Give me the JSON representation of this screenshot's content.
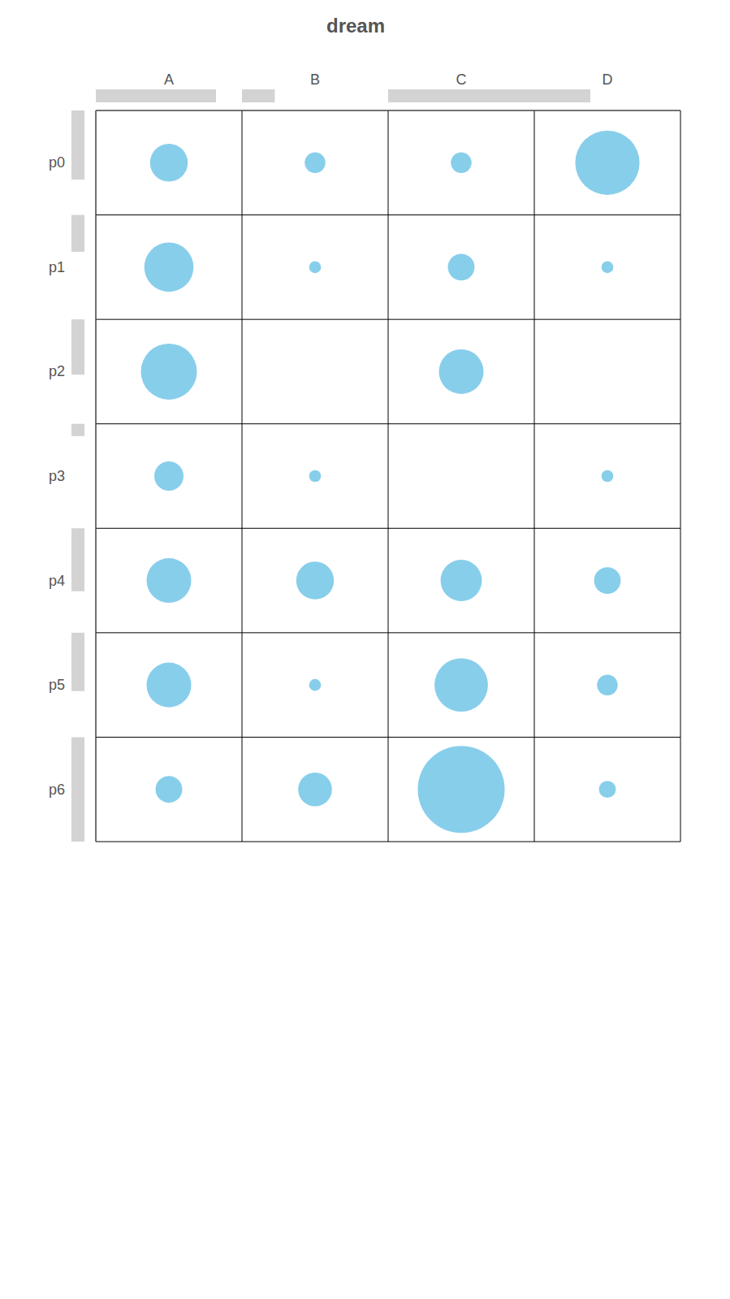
{
  "chart_data": {
    "type": "balloon",
    "title": "dream",
    "columns": [
      "A",
      "B",
      "C",
      "D"
    ],
    "rows": [
      "p0",
      "p1",
      "p2",
      "p3",
      "p4",
      "p5",
      "p6"
    ],
    "cells": [
      [
        10,
        3,
        3,
        29
      ],
      [
        17,
        1,
        5,
        1
      ],
      [
        22,
        0,
        14,
        0
      ],
      [
        6,
        1,
        0,
        1
      ],
      [
        14,
        10,
        12,
        5
      ],
      [
        14,
        1,
        20,
        3
      ],
      [
        5,
        8,
        53,
        2
      ]
    ],
    "color": "#87ceeb"
  }
}
